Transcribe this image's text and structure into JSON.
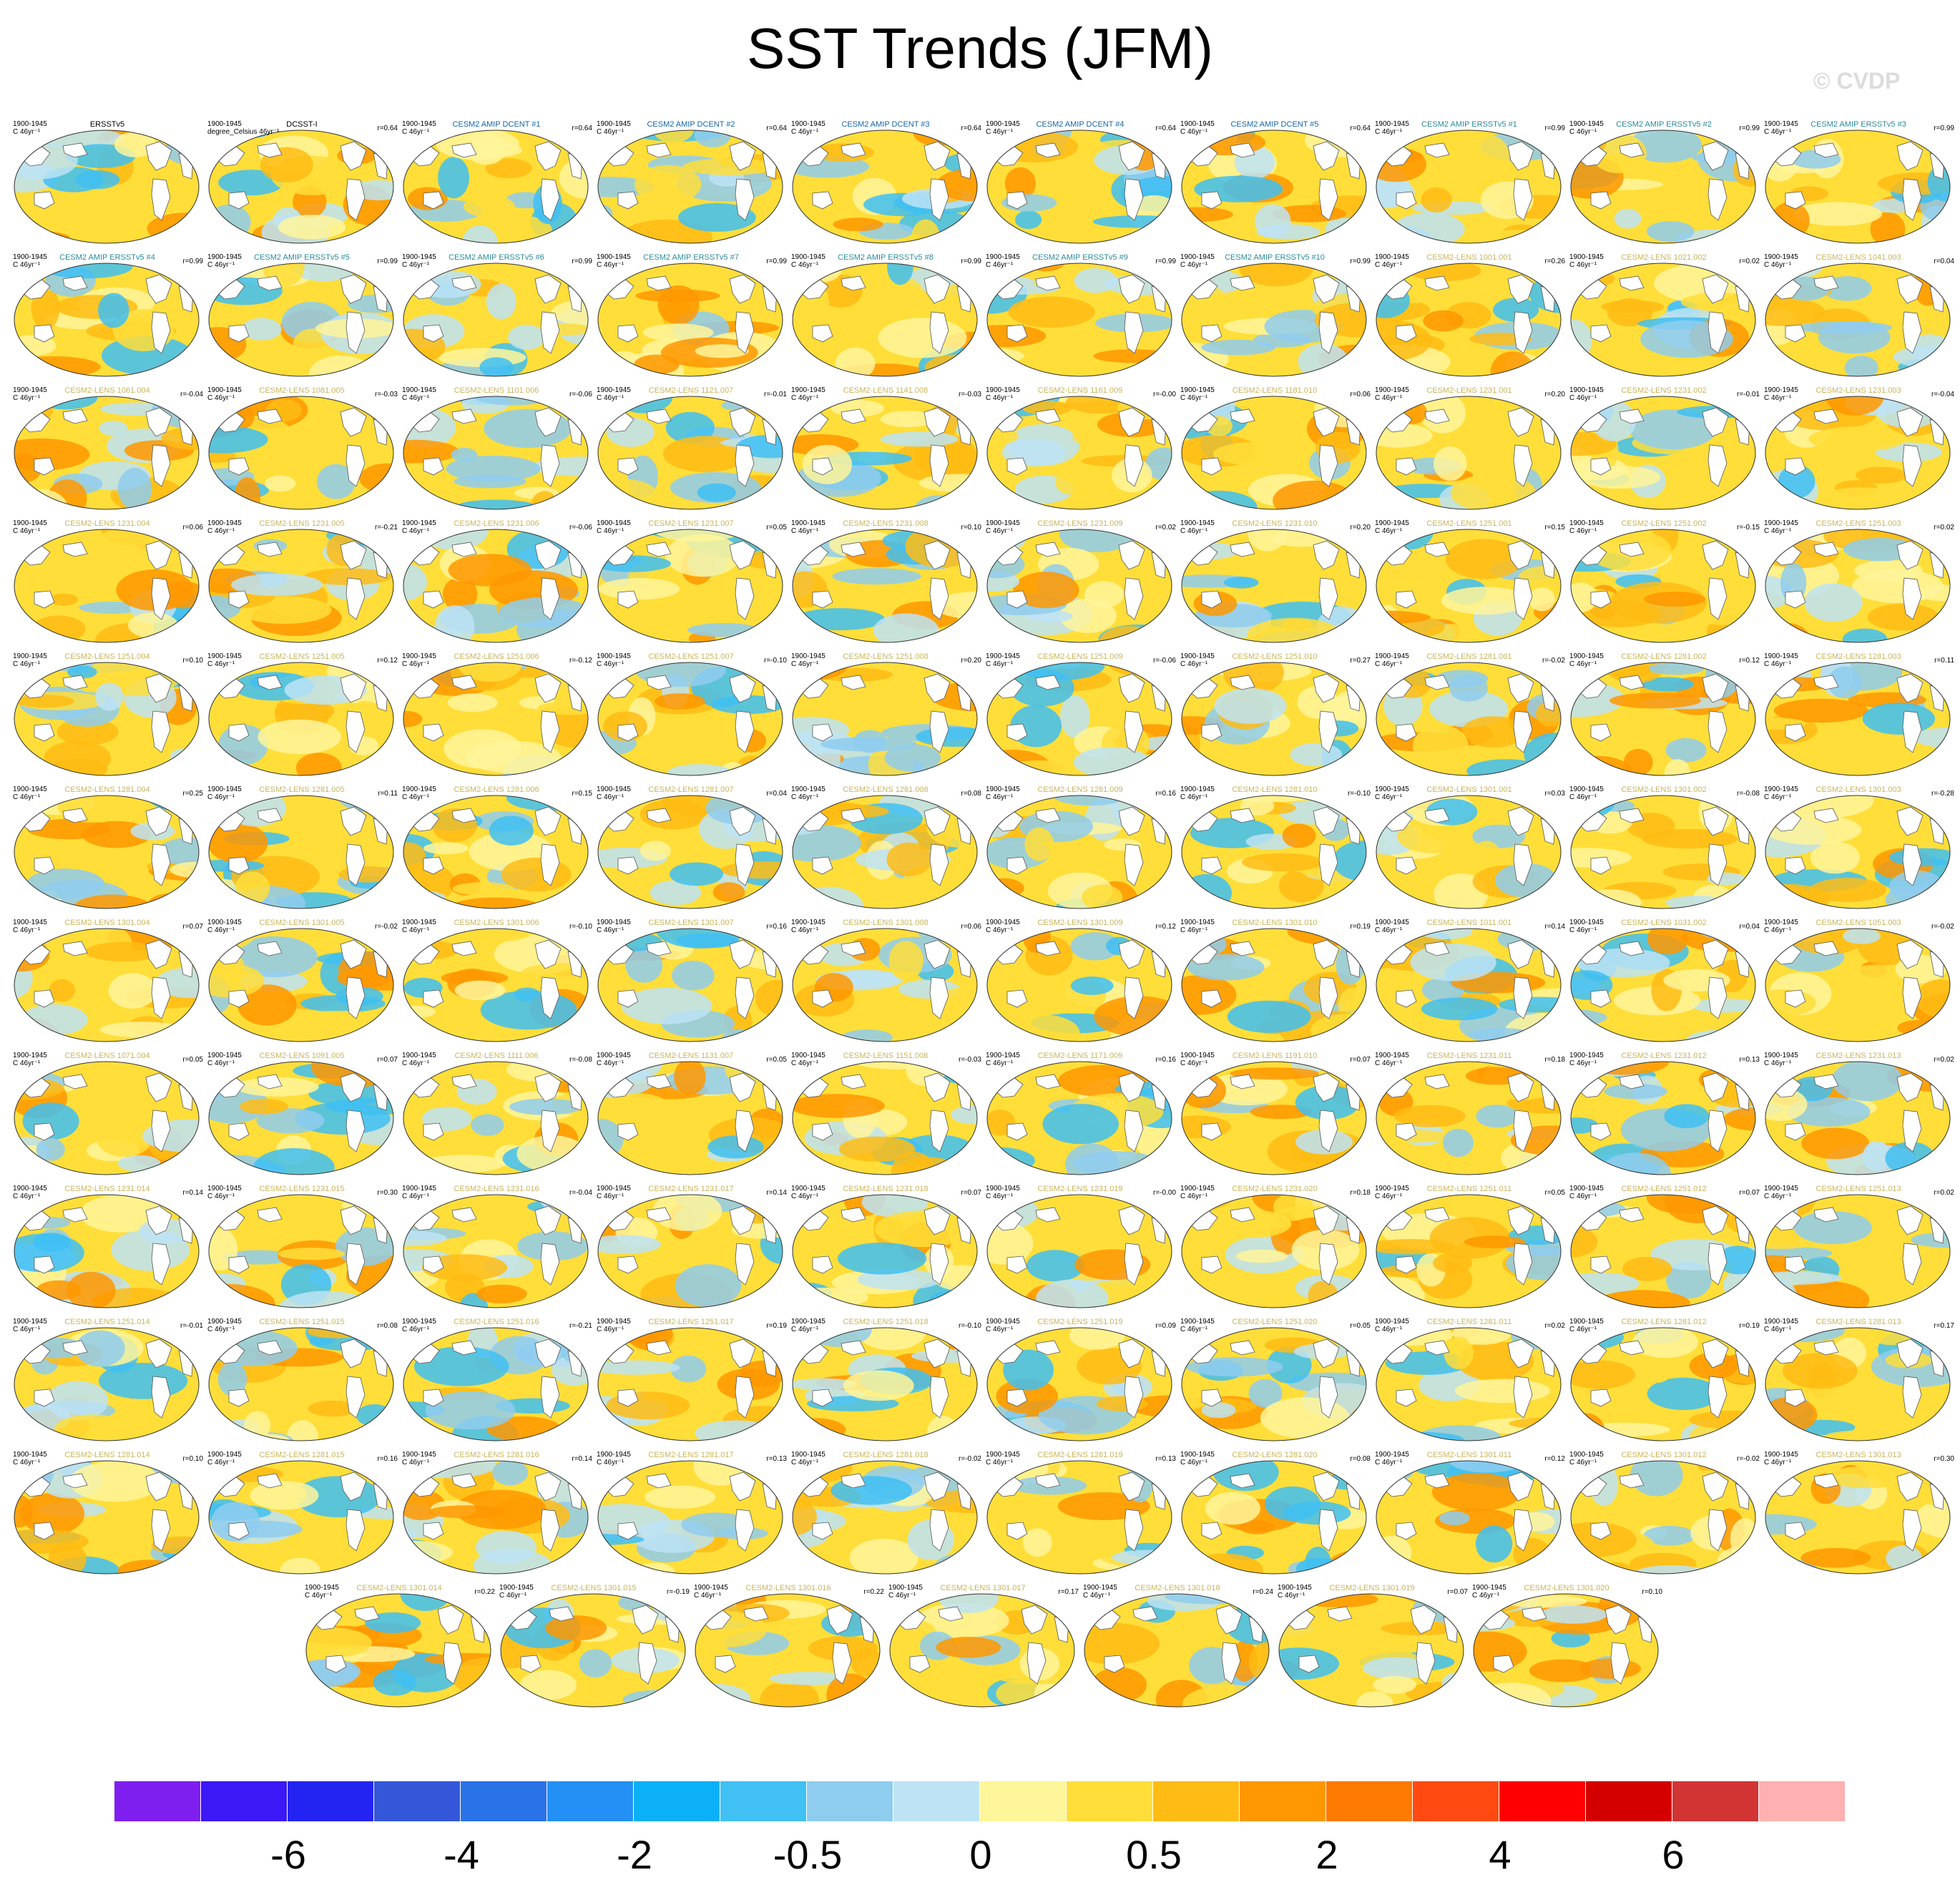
{
  "title": "SST Trends (JFM)",
  "credit": "© CVDP",
  "panel_years": "1900-1945",
  "panel_units_default": "C 46yr⁻¹",
  "panel_units_obs2": "degree_Celsius 46yr⁻¹",
  "colors": {
    "obs_title": "#000000",
    "amip_dcent_title": "#1565a8",
    "amip_ersst_title": "#2a8a9a",
    "lens_title": "#c9b45a"
  },
  "panels": [
    {
      "name": "ERSSTv5",
      "corr": "",
      "group": "obs"
    },
    {
      "name": "DCSST-I",
      "corr": "r=0.64",
      "group": "obs"
    },
    {
      "name": "CESM2 AMIP DCENT #1",
      "corr": "r=0.64",
      "group": "dcent"
    },
    {
      "name": "CESM2 AMIP DCENT #2",
      "corr": "r=0.64",
      "group": "dcent"
    },
    {
      "name": "CESM2 AMIP DCENT #3",
      "corr": "r=0.64",
      "group": "dcent"
    },
    {
      "name": "CESM2 AMIP DCENT #4",
      "corr": "r=0.64",
      "group": "dcent"
    },
    {
      "name": "CESM2 AMIP DCENT #5",
      "corr": "r=0.64",
      "group": "dcent"
    },
    {
      "name": "CESM2 AMIP ERSSTv5 #1",
      "corr": "r=0.99",
      "group": "ersst"
    },
    {
      "name": "CESM2 AMIP ERSSTv5 #2",
      "corr": "r=0.99",
      "group": "ersst"
    },
    {
      "name": "CESM2 AMIP ERSSTv5 #3",
      "corr": "r=0.99",
      "group": "ersst"
    },
    {
      "name": "CESM2 AMIP ERSSTv5 #4",
      "corr": "r=0.99",
      "group": "ersst"
    },
    {
      "name": "CESM2 AMIP ERSSTv5 #5",
      "corr": "r=0.99",
      "group": "ersst"
    },
    {
      "name": "CESM2 AMIP ERSSTv5 #6",
      "corr": "r=0.99",
      "group": "ersst"
    },
    {
      "name": "CESM2 AMIP ERSSTv5 #7",
      "corr": "r=0.99",
      "group": "ersst"
    },
    {
      "name": "CESM2 AMIP ERSSTv5 #8",
      "corr": "r=0.99",
      "group": "ersst"
    },
    {
      "name": "CESM2 AMIP ERSSTv5 #9",
      "corr": "r=0.99",
      "group": "ersst"
    },
    {
      "name": "CESM2 AMIP ERSSTv5 #10",
      "corr": "r=0.99",
      "group": "ersst"
    },
    {
      "name": "CESM2-LENS 1001.001",
      "corr": "r=0.26",
      "group": "lens"
    },
    {
      "name": "CESM2-LENS 1021.002",
      "corr": "r=0.02",
      "group": "lens"
    },
    {
      "name": "CESM2-LENS 1041.003",
      "corr": "r=0.04",
      "group": "lens"
    },
    {
      "name": "CESM2-LENS 1061.004",
      "corr": "r=-0.04",
      "group": "lens"
    },
    {
      "name": "CESM2-LENS 1081.005",
      "corr": "r=-0.03",
      "group": "lens"
    },
    {
      "name": "CESM2-LENS 1101.006",
      "corr": "r=-0.06",
      "group": "lens"
    },
    {
      "name": "CESM2-LENS 1121.007",
      "corr": "r=-0.01",
      "group": "lens"
    },
    {
      "name": "CESM2-LENS 1141.008",
      "corr": "r=-0.03",
      "group": "lens"
    },
    {
      "name": "CESM2-LENS 1161.009",
      "corr": "r=-0.00",
      "group": "lens"
    },
    {
      "name": "CESM2-LENS 1181.010",
      "corr": "r=0.06",
      "group": "lens"
    },
    {
      "name": "CESM2-LENS 1231.001",
      "corr": "r=0.20",
      "group": "lens"
    },
    {
      "name": "CESM2-LENS 1231.002",
      "corr": "r=-0.01",
      "group": "lens"
    },
    {
      "name": "CESM2-LENS 1231.003",
      "corr": "r=-0.04",
      "group": "lens"
    },
    {
      "name": "CESM2-LENS 1231.004",
      "corr": "r=0.06",
      "group": "lens"
    },
    {
      "name": "CESM2-LENS 1231.005",
      "corr": "r=-0.21",
      "group": "lens"
    },
    {
      "name": "CESM2-LENS 1231.006",
      "corr": "r=-0.06",
      "group": "lens"
    },
    {
      "name": "CESM2-LENS 1231.007",
      "corr": "r=0.05",
      "group": "lens"
    },
    {
      "name": "CESM2-LENS 1231.008",
      "corr": "r=0.10",
      "group": "lens"
    },
    {
      "name": "CESM2-LENS 1231.009",
      "corr": "r=0.02",
      "group": "lens"
    },
    {
      "name": "CESM2-LENS 1231.010",
      "corr": "r=0.20",
      "group": "lens"
    },
    {
      "name": "CESM2-LENS 1251.001",
      "corr": "r=0.15",
      "group": "lens"
    },
    {
      "name": "CESM2-LENS 1251.002",
      "corr": "r=-0.15",
      "group": "lens"
    },
    {
      "name": "CESM2-LENS 1251.003",
      "corr": "r=0.02",
      "group": "lens"
    },
    {
      "name": "CESM2-LENS 1251.004",
      "corr": "r=0.10",
      "group": "lens"
    },
    {
      "name": "CESM2-LENS 1251.005",
      "corr": "r=0.12",
      "group": "lens"
    },
    {
      "name": "CESM2-LENS 1251.006",
      "corr": "r=-0.12",
      "group": "lens"
    },
    {
      "name": "CESM2-LENS 1251.007",
      "corr": "r=-0.10",
      "group": "lens"
    },
    {
      "name": "CESM2-LENS 1251.008",
      "corr": "r=0.20",
      "group": "lens"
    },
    {
      "name": "CESM2-LENS 1251.009",
      "corr": "r=-0.06",
      "group": "lens"
    },
    {
      "name": "CESM2-LENS 1251.010",
      "corr": "r=0.27",
      "group": "lens"
    },
    {
      "name": "CESM2-LENS 1281.001",
      "corr": "r=-0.02",
      "group": "lens"
    },
    {
      "name": "CESM2-LENS 1281.002",
      "corr": "r=0.12",
      "group": "lens"
    },
    {
      "name": "CESM2-LENS 1281.003",
      "corr": "r=0.11",
      "group": "lens"
    },
    {
      "name": "CESM2-LENS 1281.004",
      "corr": "r=0.25",
      "group": "lens"
    },
    {
      "name": "CESM2-LENS 1281.005",
      "corr": "r=0.11",
      "group": "lens"
    },
    {
      "name": "CESM2-LENS 1281.006",
      "corr": "r=0.15",
      "group": "lens"
    },
    {
      "name": "CESM2-LENS 1281.007",
      "corr": "r=0.04",
      "group": "lens"
    },
    {
      "name": "CESM2-LENS 1281.008",
      "corr": "r=0.08",
      "group": "lens"
    },
    {
      "name": "CESM2-LENS 1281.009",
      "corr": "r=0.16",
      "group": "lens"
    },
    {
      "name": "CESM2-LENS 1281.010",
      "corr": "r=-0.10",
      "group": "lens"
    },
    {
      "name": "CESM2-LENS 1301.001",
      "corr": "r=0.03",
      "group": "lens"
    },
    {
      "name": "CESM2-LENS 1301.002",
      "corr": "r=-0.08",
      "group": "lens"
    },
    {
      "name": "CESM2-LENS 1301.003",
      "corr": "r=-0.28",
      "group": "lens"
    },
    {
      "name": "CESM2-LENS 1301.004",
      "corr": "r=0.07",
      "group": "lens"
    },
    {
      "name": "CESM2-LENS 1301.005",
      "corr": "r=-0.02",
      "group": "lens"
    },
    {
      "name": "CESM2-LENS 1301.006",
      "corr": "r=-0.10",
      "group": "lens"
    },
    {
      "name": "CESM2-LENS 1301.007",
      "corr": "r=0.16",
      "group": "lens"
    },
    {
      "name": "CESM2-LENS 1301.008",
      "corr": "r=0.06",
      "group": "lens"
    },
    {
      "name": "CESM2-LENS 1301.009",
      "corr": "r=0.12",
      "group": "lens"
    },
    {
      "name": "CESM2-LENS 1301.010",
      "corr": "r=0.19",
      "group": "lens"
    },
    {
      "name": "CESM2-LENS 1011.001",
      "corr": "r=0.14",
      "group": "lens"
    },
    {
      "name": "CESM2-LENS 1031.002",
      "corr": "r=0.04",
      "group": "lens"
    },
    {
      "name": "CESM2-LENS 1051.003",
      "corr": "r=-0.02",
      "group": "lens"
    },
    {
      "name": "CESM2-LENS 1071.004",
      "corr": "r=0.05",
      "group": "lens"
    },
    {
      "name": "CESM2-LENS 1091.005",
      "corr": "r=0.07",
      "group": "lens"
    },
    {
      "name": "CESM2-LENS 1111.006",
      "corr": "r=-0.08",
      "group": "lens"
    },
    {
      "name": "CESM2-LENS 1131.007",
      "corr": "r=0.05",
      "group": "lens"
    },
    {
      "name": "CESM2-LENS 1151.008",
      "corr": "r=-0.03",
      "group": "lens"
    },
    {
      "name": "CESM2-LENS 1171.009",
      "corr": "r=0.16",
      "group": "lens"
    },
    {
      "name": "CESM2-LENS 1191.010",
      "corr": "r=0.07",
      "group": "lens"
    },
    {
      "name": "CESM2-LENS 1231.011",
      "corr": "r=0.18",
      "group": "lens"
    },
    {
      "name": "CESM2-LENS 1231.012",
      "corr": "r=0.13",
      "group": "lens"
    },
    {
      "name": "CESM2-LENS 1231.013",
      "corr": "r=0.02",
      "group": "lens"
    },
    {
      "name": "CESM2-LENS 1231.014",
      "corr": "r=0.14",
      "group": "lens"
    },
    {
      "name": "CESM2-LENS 1231.015",
      "corr": "r=0.30",
      "group": "lens"
    },
    {
      "name": "CESM2-LENS 1231.016",
      "corr": "r=-0.04",
      "group": "lens"
    },
    {
      "name": "CESM2-LENS 1231.017",
      "corr": "r=0.14",
      "group": "lens"
    },
    {
      "name": "CESM2-LENS 1231.018",
      "corr": "r=0.07",
      "group": "lens"
    },
    {
      "name": "CESM2-LENS 1231.019",
      "corr": "r=-0.00",
      "group": "lens"
    },
    {
      "name": "CESM2-LENS 1231.020",
      "corr": "r=0.18",
      "group": "lens"
    },
    {
      "name": "CESM2-LENS 1251.011",
      "corr": "r=0.05",
      "group": "lens"
    },
    {
      "name": "CESM2-LENS 1251.012",
      "corr": "r=0.07",
      "group": "lens"
    },
    {
      "name": "CESM2-LENS 1251.013",
      "corr": "r=0.02",
      "group": "lens"
    },
    {
      "name": "CESM2-LENS 1251.014",
      "corr": "r=-0.01",
      "group": "lens"
    },
    {
      "name": "CESM2-LENS 1251.015",
      "corr": "r=0.08",
      "group": "lens"
    },
    {
      "name": "CESM2-LENS 1251.016",
      "corr": "r=-0.21",
      "group": "lens"
    },
    {
      "name": "CESM2-LENS 1251.017",
      "corr": "r=0.19",
      "group": "lens"
    },
    {
      "name": "CESM2-LENS 1251.018",
      "corr": "r=-0.10",
      "group": "lens"
    },
    {
      "name": "CESM2-LENS 1251.019",
      "corr": "r=0.09",
      "group": "lens"
    },
    {
      "name": "CESM2-LENS 1251.020",
      "corr": "r=0.05",
      "group": "lens"
    },
    {
      "name": "CESM2-LENS 1281.011",
      "corr": "r=0.02",
      "group": "lens"
    },
    {
      "name": "CESM2-LENS 1281.012",
      "corr": "r=0.19",
      "group": "lens"
    },
    {
      "name": "CESM2-LENS 1281.013",
      "corr": "r=0.17",
      "group": "lens"
    },
    {
      "name": "CESM2-LENS 1281.014",
      "corr": "r=0.10",
      "group": "lens"
    },
    {
      "name": "CESM2-LENS 1281.015",
      "corr": "r=0.16",
      "group": "lens"
    },
    {
      "name": "CESM2-LENS 1281.016",
      "corr": "r=0.14",
      "group": "lens"
    },
    {
      "name": "CESM2-LENS 1281.017",
      "corr": "r=0.13",
      "group": "lens"
    },
    {
      "name": "CESM2-LENS 1281.018",
      "corr": "r=-0.02",
      "group": "lens"
    },
    {
      "name": "CESM2-LENS 1281.019",
      "corr": "r=0.13",
      "group": "lens"
    },
    {
      "name": "CESM2-LENS 1281.020",
      "corr": "r=0.08",
      "group": "lens"
    },
    {
      "name": "CESM2-LENS 1301.011",
      "corr": "r=0.12",
      "group": "lens"
    },
    {
      "name": "CESM2-LENS 1301.012",
      "corr": "r=-0.02",
      "group": "lens"
    },
    {
      "name": "CESM2-LENS 1301.013",
      "corr": "r=0.30",
      "group": "lens"
    },
    {
      "name": "CESM2-LENS 1301.014",
      "corr": "r=0.22",
      "group": "lens"
    },
    {
      "name": "CESM2-LENS 1301.015",
      "corr": "r=-0.19",
      "group": "lens"
    },
    {
      "name": "CESM2-LENS 1301.016",
      "corr": "r=0.22",
      "group": "lens"
    },
    {
      "name": "CESM2-LENS 1301.017",
      "corr": "r=0.17",
      "group": "lens"
    },
    {
      "name": "CESM2-LENS 1301.018",
      "corr": "r=0.24",
      "group": "lens"
    },
    {
      "name": "CESM2-LENS 1301.019",
      "corr": "r=0.07",
      "group": "lens"
    },
    {
      "name": "CESM2-LENS 1301.020",
      "corr": "r=0.10",
      "group": "lens"
    }
  ],
  "colorbar": {
    "colors": [
      "#7e1ff0",
      "#3b18f5",
      "#2424f2",
      "#3457d9",
      "#2a72e8",
      "#2390f5",
      "#0bb0f7",
      "#40c0f3",
      "#8fcdef",
      "#bde3f5",
      "#fff59a",
      "#ffde3a",
      "#ffbc14",
      "#ff9800",
      "#ff7a00",
      "#ff4a12",
      "#ff0000",
      "#d40000",
      "#d23434",
      "#ffb0b0"
    ],
    "labels": [
      "-6",
      "-4",
      "-2",
      "-0.5",
      "0",
      "0.5",
      "2",
      "4",
      "6"
    ]
  }
}
